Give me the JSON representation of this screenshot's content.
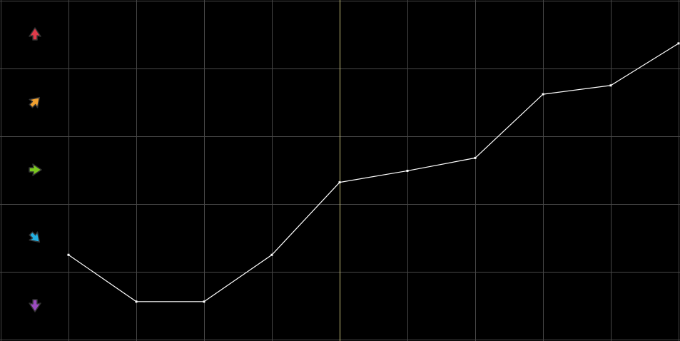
{
  "chart_data": {
    "type": "line",
    "title": "",
    "xlabel": "",
    "ylabel": "",
    "grid": true,
    "xlim": [
      -1,
      9
    ],
    "ylim": [
      0,
      5
    ],
    "x": [
      0,
      1,
      2,
      3,
      4,
      5,
      6,
      7,
      8,
      9
    ],
    "series": [
      {
        "values": [
          1.25,
          0.56,
          0.56,
          1.25,
          2.32,
          2.49,
          2.68,
          3.62,
          3.75,
          4.37
        ]
      }
    ],
    "highlight_x": 4,
    "legend_icons": [
      {
        "icon": "arrow-up-icon",
        "color": "#e03a4a"
      },
      {
        "icon": "arrow-up-right-icon",
        "color": "#f0a030"
      },
      {
        "icon": "arrow-right-icon",
        "color": "#7ac81e"
      },
      {
        "icon": "arrow-down-right-icon",
        "color": "#22aee0"
      },
      {
        "icon": "arrow-down-icon",
        "color": "#9b4bbf"
      }
    ],
    "colors": {
      "background": "#000000",
      "grid": "#474747",
      "line": "#ffffff",
      "highlight": "#c8c27a"
    }
  }
}
